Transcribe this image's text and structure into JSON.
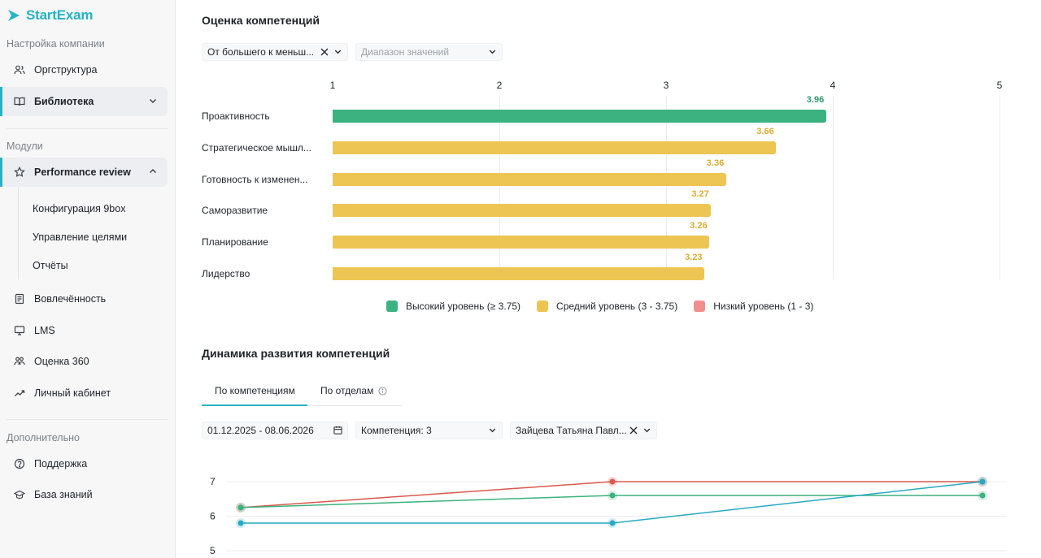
{
  "app": {
    "name": "StartExam"
  },
  "sidebar": {
    "company_section": "Настройка компании",
    "orgstructure": "Оргструктура",
    "library": "Библиотека",
    "modules_section": "Модули",
    "performance_review": "Performance review",
    "sub_items": [
      "Конфигурация 9box",
      "Управление целями",
      "Отчёты"
    ],
    "engagement": "Вовлечённость",
    "lms": "LMS",
    "review360": "Оценка 360",
    "cabinet": "Личный кабинет",
    "extra_section": "Дополнительно",
    "support": "Поддержка",
    "knowledge_base": "База знаний"
  },
  "competency_section": {
    "title": "Оценка компетенций",
    "sort_select": "От большего к меньш...",
    "range_placeholder": "Диапазон значений"
  },
  "chart_data": [
    {
      "type": "bar",
      "orientation": "horizontal",
      "categories": [
        "Проактивность",
        "Стратегическое мышл...",
        "Готовность к изменен...",
        "Саморазвитие",
        "Планирование",
        "Лидерство"
      ],
      "values": [
        3.96,
        3.66,
        3.36,
        3.27,
        3.26,
        3.23
      ],
      "value_labels": [
        "3.96",
        "3.66",
        "3.36",
        "3.27",
        "3.26",
        "3.23"
      ],
      "xlim": [
        1,
        5
      ],
      "x_ticks": [
        "1",
        "2",
        "3",
        "4",
        "5"
      ],
      "legend": [
        {
          "label": "Высокий уровень (≥ 3.75)",
          "color": "#3bb27f"
        },
        {
          "label": "Средний уровень (3 - 3.75)",
          "color": "#ecc553"
        },
        {
          "label": "Низкий уровень (1 - 3)",
          "color": "#f28f8f"
        }
      ],
      "legend_position": "bottom",
      "grid": true
    },
    {
      "type": "line",
      "x": [
        "p1",
        "p2",
        "p3"
      ],
      "y_ticks": [
        "7",
        "6",
        "5"
      ],
      "ylim": [
        5,
        7
      ],
      "series": [
        {
          "color": "#d9594c",
          "values": [
            6.25,
            7.0,
            7.0
          ]
        },
        {
          "color": "#3bb27f",
          "values": [
            6.25,
            6.6,
            6.6
          ]
        },
        {
          "color": "#27a9c4",
          "values": [
            5.8,
            5.8,
            7.0
          ]
        }
      ],
      "grid": true
    }
  ],
  "dynamics_section": {
    "title": "Динамика развития компетенций",
    "tab_competencies": "По компетенциям",
    "tab_departments": "По отделам",
    "date_range": "01.12.2025 - 08.06.2026",
    "competency_select": "Компетенция: 3",
    "person_select": "Зайцева Татьяна Павл..."
  }
}
